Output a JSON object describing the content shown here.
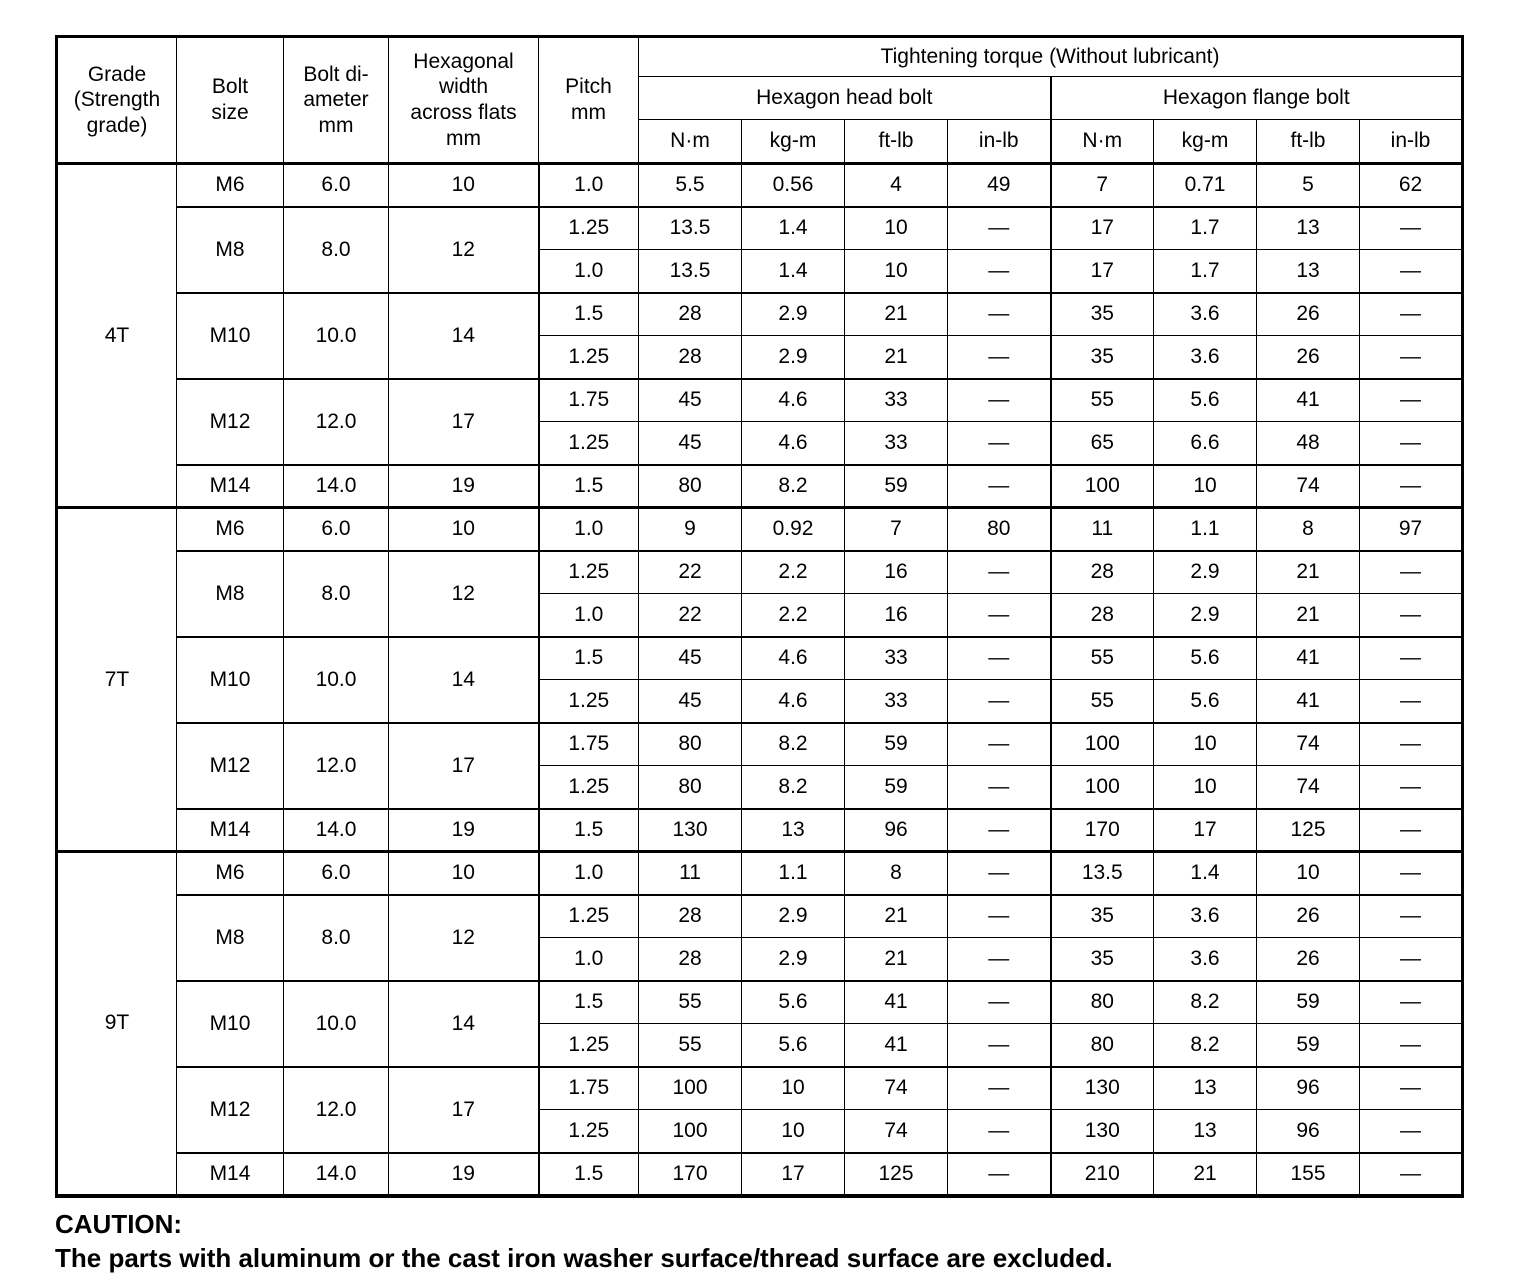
{
  "table": {
    "header": {
      "grade": "Grade\n(Strength\ngrade)",
      "bolt_size": "Bolt\nsize",
      "bolt_diameter": "Bolt di-\nameter\nmm",
      "hex_width": "Hexagonal\nwidth\nacross flats\nmm",
      "pitch": "Pitch\nmm",
      "torque_title": "Tightening torque (Without lubricant)",
      "head_bolt_group": "Hexagon head bolt",
      "flange_bolt_group": "Hexagon flange bolt",
      "units": [
        "N·m",
        "kg-m",
        "ft-lb",
        "in-lb",
        "N·m",
        "kg-m",
        "ft-lb",
        "in-lb"
      ]
    },
    "blocks": [
      {
        "grade": "4T",
        "rows": [
          {
            "bolt_size": "M6",
            "span": 1,
            "diameter": "6.0",
            "hex_width": "10",
            "pitch": "1.0",
            "values": [
              "5.5",
              "0.56",
              "4",
              "49",
              "7",
              "0.71",
              "5",
              "62"
            ]
          },
          {
            "bolt_size": "M8",
            "span": 2,
            "diameter": "8.0",
            "hex_width": "12",
            "pitch": "1.25",
            "values": [
              "13.5",
              "1.4",
              "10",
              "—",
              "17",
              "1.7",
              "13",
              "—"
            ]
          },
          {
            "pitch": "1.0",
            "values": [
              "13.5",
              "1.4",
              "10",
              "—",
              "17",
              "1.7",
              "13",
              "—"
            ]
          },
          {
            "bolt_size": "M10",
            "span": 2,
            "diameter": "10.0",
            "hex_width": "14",
            "pitch": "1.5",
            "values": [
              "28",
              "2.9",
              "21",
              "—",
              "35",
              "3.6",
              "26",
              "—"
            ]
          },
          {
            "pitch": "1.25",
            "values": [
              "28",
              "2.9",
              "21",
              "—",
              "35",
              "3.6",
              "26",
              "—"
            ]
          },
          {
            "bolt_size": "M12",
            "span": 2,
            "diameter": "12.0",
            "hex_width": "17",
            "pitch": "1.75",
            "values": [
              "45",
              "4.6",
              "33",
              "—",
              "55",
              "5.6",
              "41",
              "—"
            ]
          },
          {
            "pitch": "1.25",
            "values": [
              "45",
              "4.6",
              "33",
              "—",
              "65",
              "6.6",
              "48",
              "—"
            ]
          },
          {
            "bolt_size": "M14",
            "span": 1,
            "diameter": "14.0",
            "hex_width": "19",
            "pitch": "1.5",
            "values": [
              "80",
              "8.2",
              "59",
              "—",
              "100",
              "10",
              "74",
              "—"
            ]
          }
        ]
      },
      {
        "grade": "7T",
        "rows": [
          {
            "bolt_size": "M6",
            "span": 1,
            "diameter": "6.0",
            "hex_width": "10",
            "pitch": "1.0",
            "values": [
              "9",
              "0.92",
              "7",
              "80",
              "11",
              "1.1",
              "8",
              "97"
            ]
          },
          {
            "bolt_size": "M8",
            "span": 2,
            "diameter": "8.0",
            "hex_width": "12",
            "pitch": "1.25",
            "values": [
              "22",
              "2.2",
              "16",
              "—",
              "28",
              "2.9",
              "21",
              "—"
            ]
          },
          {
            "pitch": "1.0",
            "values": [
              "22",
              "2.2",
              "16",
              "—",
              "28",
              "2.9",
              "21",
              "—"
            ]
          },
          {
            "bolt_size": "M10",
            "span": 2,
            "diameter": "10.0",
            "hex_width": "14",
            "pitch": "1.5",
            "values": [
              "45",
              "4.6",
              "33",
              "—",
              "55",
              "5.6",
              "41",
              "—"
            ]
          },
          {
            "pitch": "1.25",
            "values": [
              "45",
              "4.6",
              "33",
              "—",
              "55",
              "5.6",
              "41",
              "—"
            ]
          },
          {
            "bolt_size": "M12",
            "span": 2,
            "diameter": "12.0",
            "hex_width": "17",
            "pitch": "1.75",
            "values": [
              "80",
              "8.2",
              "59",
              "—",
              "100",
              "10",
              "74",
              "—"
            ]
          },
          {
            "pitch": "1.25",
            "values": [
              "80",
              "8.2",
              "59",
              "—",
              "100",
              "10",
              "74",
              "—"
            ]
          },
          {
            "bolt_size": "M14",
            "span": 1,
            "diameter": "14.0",
            "hex_width": "19",
            "pitch": "1.5",
            "values": [
              "130",
              "13",
              "96",
              "—",
              "170",
              "17",
              "125",
              "—"
            ]
          }
        ]
      },
      {
        "grade": "9T",
        "rows": [
          {
            "bolt_size": "M6",
            "span": 1,
            "diameter": "6.0",
            "hex_width": "10",
            "pitch": "1.0",
            "values": [
              "11",
              "1.1",
              "8",
              "—",
              "13.5",
              "1.4",
              "10",
              "—"
            ]
          },
          {
            "bolt_size": "M8",
            "span": 2,
            "diameter": "8.0",
            "hex_width": "12",
            "pitch": "1.25",
            "values": [
              "28",
              "2.9",
              "21",
              "—",
              "35",
              "3.6",
              "26",
              "—"
            ]
          },
          {
            "pitch": "1.0",
            "values": [
              "28",
              "2.9",
              "21",
              "—",
              "35",
              "3.6",
              "26",
              "—"
            ]
          },
          {
            "bolt_size": "M10",
            "span": 2,
            "diameter": "10.0",
            "hex_width": "14",
            "pitch": "1.5",
            "values": [
              "55",
              "5.6",
              "41",
              "—",
              "80",
              "8.2",
              "59",
              "—"
            ]
          },
          {
            "pitch": "1.25",
            "values": [
              "55",
              "5.6",
              "41",
              "—",
              "80",
              "8.2",
              "59",
              "—"
            ]
          },
          {
            "bolt_size": "M12",
            "span": 2,
            "diameter": "12.0",
            "hex_width": "17",
            "pitch": "1.75",
            "values": [
              "100",
              "10",
              "74",
              "—",
              "130",
              "13",
              "96",
              "—"
            ]
          },
          {
            "pitch": "1.25",
            "values": [
              "100",
              "10",
              "74",
              "—",
              "130",
              "13",
              "96",
              "—"
            ]
          },
          {
            "bolt_size": "M14",
            "span": 1,
            "diameter": "14.0",
            "hex_width": "19",
            "pitch": "1.5",
            "values": [
              "170",
              "17",
              "125",
              "—",
              "210",
              "21",
              "155",
              "—"
            ]
          }
        ]
      }
    ]
  },
  "caution": {
    "title": "CAUTION:",
    "text": "The parts with aluminum or the cast iron washer surface/thread surface are excluded."
  }
}
